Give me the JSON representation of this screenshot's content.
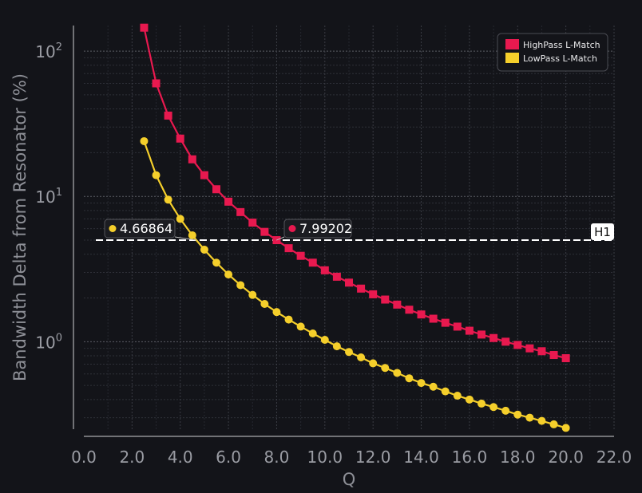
{
  "chart_data": {
    "type": "line",
    "xlabel": "Q",
    "ylabel": "Bandwidth Delta from Resonator (%)",
    "xlim": [
      0,
      22
    ],
    "ylim": [
      0.25,
      150
    ],
    "yscale": "log",
    "x_ticks": [
      "0.0",
      "2.0",
      "4.0",
      "6.0",
      "8.0",
      "10.0",
      "12.0",
      "14.0",
      "16.0",
      "18.0",
      "20.0",
      "22.0"
    ],
    "y_ticks": [
      {
        "value": 1,
        "base": "10",
        "exp": "0"
      },
      {
        "value": 10,
        "base": "10",
        "exp": "1"
      },
      {
        "value": 100,
        "base": "10",
        "exp": "2"
      }
    ],
    "grid": true,
    "legend_position": "top-right",
    "series": [
      {
        "name": "HighPass L-Match",
        "color": "#e8194f",
        "marker": "square",
        "x": [
          2.5,
          3.0,
          3.5,
          4.0,
          4.5,
          5.0,
          5.5,
          6.0,
          6.5,
          7.0,
          7.5,
          8.0,
          8.5,
          9.0,
          9.5,
          10.0,
          10.5,
          11.0,
          11.5,
          12.0,
          12.5,
          13.0,
          13.5,
          14.0,
          14.5,
          15.0,
          15.5,
          16.0,
          16.5,
          17.0,
          17.5,
          18.0,
          18.5,
          19.0,
          19.5,
          20.0
        ],
        "y": [
          145,
          60,
          36,
          25,
          18,
          14,
          11.2,
          9.2,
          7.8,
          6.6,
          5.7,
          5.0,
          4.4,
          3.9,
          3.5,
          3.1,
          2.8,
          2.55,
          2.32,
          2.12,
          1.95,
          1.8,
          1.66,
          1.54,
          1.44,
          1.35,
          1.27,
          1.19,
          1.12,
          1.06,
          1.0,
          0.95,
          0.9,
          0.86,
          0.81,
          0.77
        ]
      },
      {
        "name": "LowPass L-Match",
        "color": "#f5cf2b",
        "marker": "circle",
        "x": [
          2.5,
          3.0,
          3.5,
          4.0,
          4.5,
          5.0,
          5.5,
          6.0,
          6.5,
          7.0,
          7.5,
          8.0,
          8.5,
          9.0,
          9.5,
          10.0,
          10.5,
          11.0,
          11.5,
          12.0,
          12.5,
          13.0,
          13.5,
          14.0,
          14.5,
          15.0,
          15.5,
          16.0,
          16.5,
          17.0,
          17.5,
          18.0,
          18.5,
          19.0,
          19.5,
          20.0
        ],
        "y": [
          24,
          14,
          9.5,
          7.0,
          5.4,
          4.3,
          3.5,
          2.9,
          2.45,
          2.1,
          1.82,
          1.6,
          1.42,
          1.27,
          1.14,
          1.03,
          0.93,
          0.85,
          0.78,
          0.71,
          0.66,
          0.61,
          0.56,
          0.52,
          0.49,
          0.455,
          0.425,
          0.4,
          0.375,
          0.355,
          0.335,
          0.315,
          0.3,
          0.285,
          0.27,
          0.255
        ]
      }
    ],
    "hline": {
      "label": "H1",
      "y": 5.0
    },
    "annotations": [
      {
        "text": "4.66864",
        "series": "LowPass L-Match",
        "x": 4.66864,
        "y": 5.0
      },
      {
        "text": "7.99202",
        "series": "HighPass L-Match",
        "x": 7.99202,
        "y": 5.0
      }
    ]
  }
}
